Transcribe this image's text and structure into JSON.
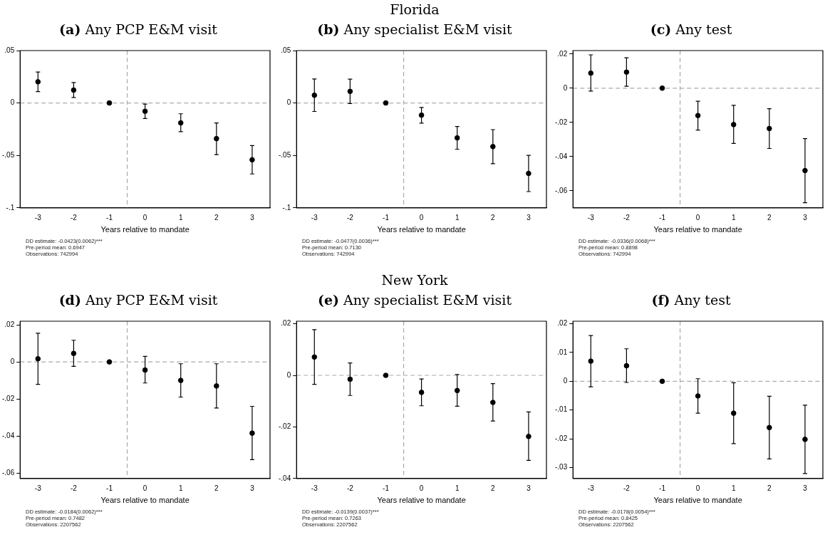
{
  "chart_data": [
    {
      "type": "scatter",
      "title": "(a) Any PCP E&M visit",
      "xlabel": "Years relative to mandate",
      "x": [
        -3,
        -2,
        -1,
        0,
        1,
        2,
        3
      ],
      "values": [
        0.0202,
        0.0123,
        0,
        -0.0079,
        -0.019,
        -0.034,
        -0.0542
      ],
      "errors": [
        [
          0.0108,
          0.0296
        ],
        [
          0.0052,
          0.0195
        ],
        null,
        [
          -0.0148,
          -0.001
        ],
        [
          -0.0273,
          -0.0103
        ],
        [
          -0.0493,
          -0.019
        ],
        [
          -0.0677,
          -0.0406
        ]
      ],
      "color": "#000000",
      "marker": "circle",
      "xlim": [
        -3.5,
        3.5
      ],
      "xticks": [
        -3,
        -2,
        -1,
        0,
        1,
        2,
        3
      ],
      "ylim": [
        -0.1,
        0.05
      ],
      "yticks": [
        {
          "value": -0.1,
          "label": "-.1"
        },
        {
          "value": -0.05,
          "label": "-.05"
        },
        {
          "value": 0,
          "label": "0"
        },
        {
          "value": 0.05,
          "label": ".05"
        }
      ],
      "ref_lines": [
        {
          "axis": "y",
          "value": 0,
          "color": "#aaaaaa",
          "line_style": "dashed"
        },
        {
          "axis": "x",
          "value": -0.5,
          "color": "#aaaaaa",
          "line_style": "dashed"
        }
      ],
      "annotations": [
        "DD estimate: -0.0423(0.0062)***",
        "Pre-period mean: 0.6947",
        "Observations: 742994"
      ]
    },
    {
      "type": "scatter",
      "subtitle": "Florida",
      "title": "(b) Any specialist E&M visit",
      "xlabel": "Years relative to mandate",
      "x": [
        -3,
        -2,
        -1,
        0,
        1,
        2,
        3
      ],
      "values": [
        0.0074,
        0.0111,
        0,
        -0.0116,
        -0.0333,
        -0.0416,
        -0.0672
      ],
      "errors": [
        [
          -0.0081,
          0.0229
        ],
        [
          -0.0005,
          0.0227
        ],
        null,
        [
          -0.0192,
          -0.0042
        ],
        [
          -0.0441,
          -0.0224
        ],
        [
          -0.0579,
          -0.0254
        ],
        [
          -0.0845,
          -0.05
        ]
      ],
      "color": "#000000",
      "marker": "circle",
      "xlim": [
        -3.5,
        3.5
      ],
      "xticks": [
        -3,
        -2,
        -1,
        0,
        1,
        2,
        3
      ],
      "ylim": [
        -0.1,
        0.05
      ],
      "yticks": [
        {
          "value": -0.1,
          "label": "-.1"
        },
        {
          "value": -0.05,
          "label": "-.05"
        },
        {
          "value": 0,
          "label": "0"
        },
        {
          "value": 0.05,
          "label": ".05"
        }
      ],
      "ref_lines": [
        {
          "axis": "y",
          "value": 0,
          "color": "#aaaaaa",
          "line_style": "dashed"
        },
        {
          "axis": "x",
          "value": -0.5,
          "color": "#aaaaaa",
          "line_style": "dashed"
        }
      ],
      "annotations": [
        "DD estimate: -0.0477(0.0036)***",
        "Pre-period mean: 0.7130",
        "Observations: 742994"
      ]
    },
    {
      "type": "scatter",
      "title": "(c) Any test",
      "xlabel": "Years relative to mandate",
      "x": [
        -3,
        -2,
        -1,
        0,
        1,
        2,
        3
      ],
      "values": [
        0.0088,
        0.0094,
        0,
        -0.016,
        -0.0213,
        -0.0236,
        -0.0482
      ],
      "errors": [
        [
          -0.0017,
          0.0195
        ],
        [
          0.0011,
          0.0178
        ],
        null,
        [
          -0.0245,
          -0.0076
        ],
        [
          -0.0323,
          -0.01
        ],
        [
          -0.0353,
          -0.012
        ],
        [
          -0.067,
          -0.0295
        ]
      ],
      "color": "#000000",
      "marker": "circle",
      "xlim": [
        -3.5,
        3.5
      ],
      "xticks": [
        -3,
        -2,
        -1,
        0,
        1,
        2,
        3
      ],
      "ylim": [
        -0.07,
        0.022
      ],
      "yticks": [
        {
          "value": -0.06,
          "label": "-.06"
        },
        {
          "value": -0.04,
          "label": "-.04"
        },
        {
          "value": -0.02,
          "label": "-.02"
        },
        {
          "value": 0,
          "label": "0"
        },
        {
          "value": 0.02,
          "label": ".02"
        }
      ],
      "ref_lines": [
        {
          "axis": "y",
          "value": 0,
          "color": "#aaaaaa",
          "line_style": "dashed"
        },
        {
          "axis": "x",
          "value": -0.5,
          "color": "#aaaaaa",
          "line_style": "dashed"
        }
      ],
      "annotations": [
        "DD estimate: -0.0336(0.0068)***",
        "Pre-period mean: 0.8898",
        "Observations: 742994"
      ]
    },
    {
      "type": "scatter",
      "title": "(d) Any PCP E&M visit",
      "xlabel": "Years relative to mandate",
      "x": [
        -3,
        -2,
        -1,
        0,
        1,
        2,
        3
      ],
      "values": [
        0.0017,
        0.0046,
        0,
        -0.0044,
        -0.01,
        -0.013,
        -0.0385
      ],
      "errors": [
        [
          -0.0121,
          0.0155
        ],
        [
          -0.0024,
          0.0117
        ],
        null,
        [
          -0.0114,
          0.003
        ],
        [
          -0.019,
          -0.001
        ],
        [
          -0.0249,
          -0.001
        ],
        [
          -0.0528,
          -0.024
        ]
      ],
      "color": "#000000",
      "marker": "circle",
      "xlim": [
        -3.5,
        3.5
      ],
      "xticks": [
        -3,
        -2,
        -1,
        0,
        1,
        2,
        3
      ],
      "ylim": [
        -0.063,
        0.022
      ],
      "yticks": [
        {
          "value": -0.06,
          "label": "-.06"
        },
        {
          "value": -0.04,
          "label": "-.04"
        },
        {
          "value": -0.02,
          "label": "-.02"
        },
        {
          "value": 0,
          "label": "0"
        },
        {
          "value": 0.02,
          "label": ".02"
        }
      ],
      "ref_lines": [
        {
          "axis": "y",
          "value": 0,
          "color": "#aaaaaa",
          "line_style": "dashed"
        },
        {
          "axis": "x",
          "value": -0.5,
          "color": "#aaaaaa",
          "line_style": "dashed"
        }
      ],
      "annotations": [
        "DD estimate: -0.0184(0.0062)***",
        "Pre-period mean: 0.7482",
        "Observations: 2207562"
      ]
    },
    {
      "type": "scatter",
      "subtitle": "New York",
      "title": "(e) Any specialist E&M visit",
      "xlabel": "Years relative to mandate",
      "x": [
        -3,
        -2,
        -1,
        0,
        1,
        2,
        3
      ],
      "values": [
        0.0071,
        -0.0015,
        0,
        -0.0066,
        -0.0059,
        -0.0105,
        -0.0237
      ],
      "errors": [
        [
          -0.0035,
          0.0177
        ],
        [
          -0.0078,
          0.0048
        ],
        null,
        [
          -0.0118,
          -0.0014
        ],
        [
          -0.012,
          0.0003
        ],
        [
          -0.0177,
          -0.0032
        ],
        [
          -0.033,
          -0.0142
        ]
      ],
      "color": "#000000",
      "marker": "circle",
      "xlim": [
        -3.5,
        3.5
      ],
      "xticks": [
        -3,
        -2,
        -1,
        0,
        1,
        2,
        3
      ],
      "ylim": [
        -0.04,
        0.021
      ],
      "yticks": [
        {
          "value": -0.04,
          "label": "-.04"
        },
        {
          "value": -0.02,
          "label": "-.02"
        },
        {
          "value": 0,
          "label": "0"
        },
        {
          "value": 0.02,
          "label": ".02"
        }
      ],
      "ref_lines": [
        {
          "axis": "y",
          "value": 0,
          "color": "#aaaaaa",
          "line_style": "dashed"
        },
        {
          "axis": "x",
          "value": -0.5,
          "color": "#aaaaaa",
          "line_style": "dashed"
        }
      ],
      "annotations": [
        "DD estimate: -0.0139(0.0037)***",
        "Pre-period mean: 0.7263",
        "Observations: 2207562"
      ]
    },
    {
      "type": "scatter",
      "title": "(f) Any test",
      "xlabel": "Years relative to mandate",
      "x": [
        -3,
        -2,
        -1,
        0,
        1,
        2,
        3
      ],
      "values": [
        0.007,
        0.0054,
        0,
        -0.0051,
        -0.0111,
        -0.0161,
        -0.0202
      ],
      "errors": [
        [
          -0.0019,
          0.0159
        ],
        [
          -0.0004,
          0.0113
        ],
        null,
        [
          -0.0111,
          0.0009
        ],
        [
          -0.0217,
          -0.0005
        ],
        [
          -0.027,
          -0.0052
        ],
        [
          -0.0321,
          -0.0083
        ]
      ],
      "color": "#000000",
      "marker": "circle",
      "xlim": [
        -3.5,
        3.5
      ],
      "xticks": [
        -3,
        -2,
        -1,
        0,
        1,
        2,
        3
      ],
      "ylim": [
        -0.0338,
        0.0209
      ],
      "yticks": [
        {
          "value": -0.03,
          "label": "-.03"
        },
        {
          "value": -0.02,
          "label": "-.02"
        },
        {
          "value": -0.01,
          "label": "-.01"
        },
        {
          "value": 0,
          "label": "0"
        },
        {
          "value": 0.01,
          "label": ".01"
        },
        {
          "value": 0.02,
          "label": ".02"
        }
      ],
      "ref_lines": [
        {
          "axis": "y",
          "value": 0,
          "color": "#aaaaaa",
          "line_style": "dashed"
        },
        {
          "axis": "x",
          "value": -0.5,
          "color": "#aaaaaa",
          "line_style": "dashed"
        }
      ],
      "annotations": [
        "DD estimate: -0.0178(0.0054)***",
        "Pre-period mean: 0.8425",
        "Observations: 2207562"
      ]
    }
  ]
}
